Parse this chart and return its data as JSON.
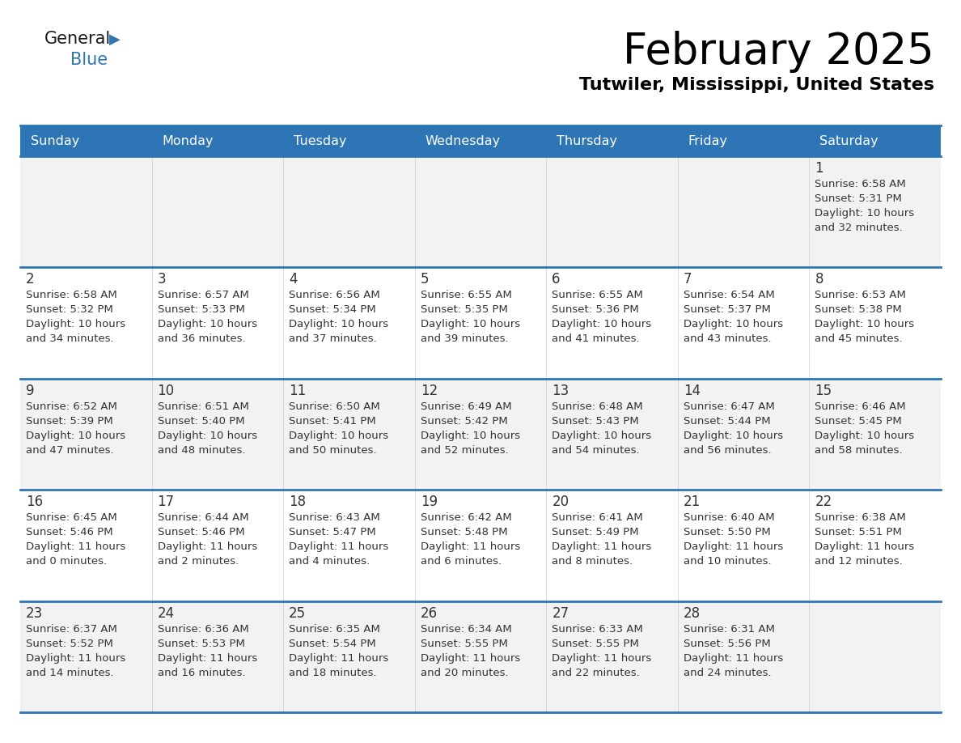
{
  "title": "February 2025",
  "subtitle": "Tutwiler, Mississippi, United States",
  "header_color": "#2e75b6",
  "header_text_color": "#ffffff",
  "cell_bg_even": "#f2f2f2",
  "cell_bg_odd": "#ffffff",
  "border_color": "#2e75b6",
  "text_color": "#333333",
  "day_num_color": "#333333",
  "day_headers": [
    "Sunday",
    "Monday",
    "Tuesday",
    "Wednesday",
    "Thursday",
    "Friday",
    "Saturday"
  ],
  "days": [
    {
      "day": 1,
      "col": 6,
      "row": 0,
      "sunrise": "6:58 AM",
      "sunset": "5:31 PM",
      "daylight_h": "10 hours",
      "daylight_m": "32 minutes."
    },
    {
      "day": 2,
      "col": 0,
      "row": 1,
      "sunrise": "6:58 AM",
      "sunset": "5:32 PM",
      "daylight_h": "10 hours",
      "daylight_m": "34 minutes."
    },
    {
      "day": 3,
      "col": 1,
      "row": 1,
      "sunrise": "6:57 AM",
      "sunset": "5:33 PM",
      "daylight_h": "10 hours",
      "daylight_m": "36 minutes."
    },
    {
      "day": 4,
      "col": 2,
      "row": 1,
      "sunrise": "6:56 AM",
      "sunset": "5:34 PM",
      "daylight_h": "10 hours",
      "daylight_m": "37 minutes."
    },
    {
      "day": 5,
      "col": 3,
      "row": 1,
      "sunrise": "6:55 AM",
      "sunset": "5:35 PM",
      "daylight_h": "10 hours",
      "daylight_m": "39 minutes."
    },
    {
      "day": 6,
      "col": 4,
      "row": 1,
      "sunrise": "6:55 AM",
      "sunset": "5:36 PM",
      "daylight_h": "10 hours",
      "daylight_m": "41 minutes."
    },
    {
      "day": 7,
      "col": 5,
      "row": 1,
      "sunrise": "6:54 AM",
      "sunset": "5:37 PM",
      "daylight_h": "10 hours",
      "daylight_m": "43 minutes."
    },
    {
      "day": 8,
      "col": 6,
      "row": 1,
      "sunrise": "6:53 AM",
      "sunset": "5:38 PM",
      "daylight_h": "10 hours",
      "daylight_m": "45 minutes."
    },
    {
      "day": 9,
      "col": 0,
      "row": 2,
      "sunrise": "6:52 AM",
      "sunset": "5:39 PM",
      "daylight_h": "10 hours",
      "daylight_m": "47 minutes."
    },
    {
      "day": 10,
      "col": 1,
      "row": 2,
      "sunrise": "6:51 AM",
      "sunset": "5:40 PM",
      "daylight_h": "10 hours",
      "daylight_m": "48 minutes."
    },
    {
      "day": 11,
      "col": 2,
      "row": 2,
      "sunrise": "6:50 AM",
      "sunset": "5:41 PM",
      "daylight_h": "10 hours",
      "daylight_m": "50 minutes."
    },
    {
      "day": 12,
      "col": 3,
      "row": 2,
      "sunrise": "6:49 AM",
      "sunset": "5:42 PM",
      "daylight_h": "10 hours",
      "daylight_m": "52 minutes."
    },
    {
      "day": 13,
      "col": 4,
      "row": 2,
      "sunrise": "6:48 AM",
      "sunset": "5:43 PM",
      "daylight_h": "10 hours",
      "daylight_m": "54 minutes."
    },
    {
      "day": 14,
      "col": 5,
      "row": 2,
      "sunrise": "6:47 AM",
      "sunset": "5:44 PM",
      "daylight_h": "10 hours",
      "daylight_m": "56 minutes."
    },
    {
      "day": 15,
      "col": 6,
      "row": 2,
      "sunrise": "6:46 AM",
      "sunset": "5:45 PM",
      "daylight_h": "10 hours",
      "daylight_m": "58 minutes."
    },
    {
      "day": 16,
      "col": 0,
      "row": 3,
      "sunrise": "6:45 AM",
      "sunset": "5:46 PM",
      "daylight_h": "11 hours",
      "daylight_m": "0 minutes."
    },
    {
      "day": 17,
      "col": 1,
      "row": 3,
      "sunrise": "6:44 AM",
      "sunset": "5:46 PM",
      "daylight_h": "11 hours",
      "daylight_m": "2 minutes."
    },
    {
      "day": 18,
      "col": 2,
      "row": 3,
      "sunrise": "6:43 AM",
      "sunset": "5:47 PM",
      "daylight_h": "11 hours",
      "daylight_m": "4 minutes."
    },
    {
      "day": 19,
      "col": 3,
      "row": 3,
      "sunrise": "6:42 AM",
      "sunset": "5:48 PM",
      "daylight_h": "11 hours",
      "daylight_m": "6 minutes."
    },
    {
      "day": 20,
      "col": 4,
      "row": 3,
      "sunrise": "6:41 AM",
      "sunset": "5:49 PM",
      "daylight_h": "11 hours",
      "daylight_m": "8 minutes."
    },
    {
      "day": 21,
      "col": 5,
      "row": 3,
      "sunrise": "6:40 AM",
      "sunset": "5:50 PM",
      "daylight_h": "11 hours",
      "daylight_m": "10 minutes."
    },
    {
      "day": 22,
      "col": 6,
      "row": 3,
      "sunrise": "6:38 AM",
      "sunset": "5:51 PM",
      "daylight_h": "11 hours",
      "daylight_m": "12 minutes."
    },
    {
      "day": 23,
      "col": 0,
      "row": 4,
      "sunrise": "6:37 AM",
      "sunset": "5:52 PM",
      "daylight_h": "11 hours",
      "daylight_m": "14 minutes."
    },
    {
      "day": 24,
      "col": 1,
      "row": 4,
      "sunrise": "6:36 AM",
      "sunset": "5:53 PM",
      "daylight_h": "11 hours",
      "daylight_m": "16 minutes."
    },
    {
      "day": 25,
      "col": 2,
      "row": 4,
      "sunrise": "6:35 AM",
      "sunset": "5:54 PM",
      "daylight_h": "11 hours",
      "daylight_m": "18 minutes."
    },
    {
      "day": 26,
      "col": 3,
      "row": 4,
      "sunrise": "6:34 AM",
      "sunset": "5:55 PM",
      "daylight_h": "11 hours",
      "daylight_m": "20 minutes."
    },
    {
      "day": 27,
      "col": 4,
      "row": 4,
      "sunrise": "6:33 AM",
      "sunset": "5:55 PM",
      "daylight_h": "11 hours",
      "daylight_m": "22 minutes."
    },
    {
      "day": 28,
      "col": 5,
      "row": 4,
      "sunrise": "6:31 AM",
      "sunset": "5:56 PM",
      "daylight_h": "11 hours",
      "daylight_m": "24 minutes."
    }
  ],
  "logo_general_color": "#1a1a1a",
  "logo_blue_color": "#2e75b6",
  "logo_triangle_color": "#2e75b6"
}
